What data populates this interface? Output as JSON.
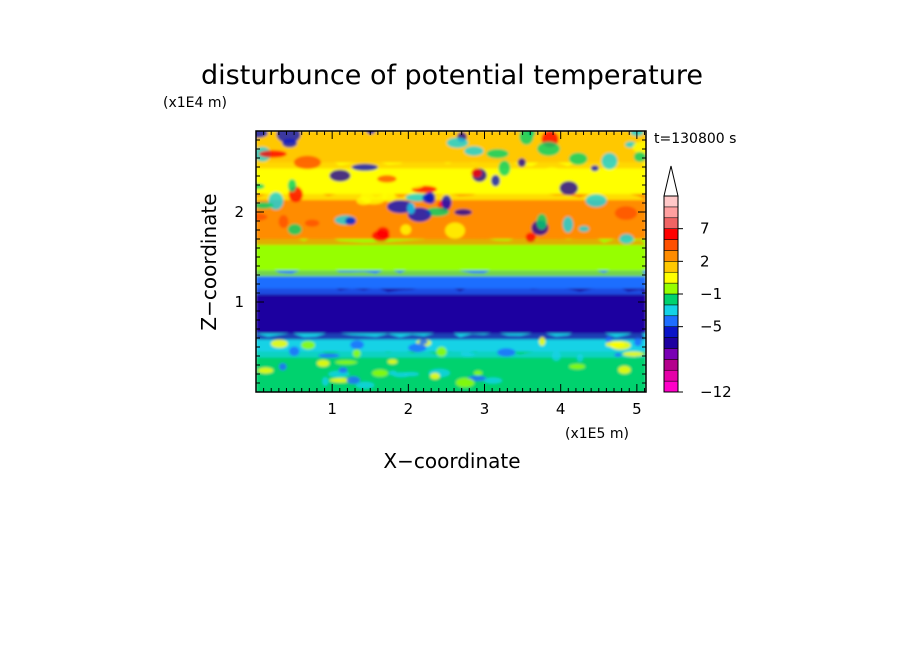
{
  "chart_data": {
    "type": "heatmap",
    "title": "disturbunce of potential temperature",
    "time_label": "t=130800 s",
    "xlabel": "X−coordinate",
    "ylabel": "Z−coordinate",
    "x_unit_label": "(x1E5 m)",
    "y_unit_label": "(x1E4 m)",
    "xlim": [
      0,
      5.12
    ],
    "ylim": [
      0,
      2.9
    ],
    "x_ticks": [
      1,
      2,
      3,
      4,
      5
    ],
    "x_tick_labels": [
      "1",
      "2",
      "3",
      "4",
      "5"
    ],
    "y_ticks": [
      1,
      2
    ],
    "y_tick_labels": [
      "1",
      "2"
    ],
    "colorbar": {
      "levels_low_to_high": [
        "#ff00c8",
        "#e600a8",
        "#b4008c",
        "#7a00b4",
        "#1e00a0",
        "#0a14c8",
        "#1e6eff",
        "#14d2e6",
        "#00d26e",
        "#96ff00",
        "#ffff00",
        "#ffc800",
        "#ff8c00",
        "#ff5000",
        "#ff0000",
        "#f06464",
        "#ffa0a0",
        "#ffc8c8"
      ],
      "tick_labels": [
        "−12",
        "−5",
        "−1",
        "2",
        "7"
      ],
      "tick_level_index": [
        0,
        6,
        9,
        12,
        15
      ],
      "extend": "max"
    },
    "field_rows_top_to_bottom": [
      {
        "z_top": 2.9,
        "z_bottom": 2.55,
        "description": "mixed orange/yellow/green with blue cells",
        "color": "#ffc800"
      },
      {
        "z_top": 2.55,
        "z_bottom": 2.2,
        "description": "yellow/orange with blue and green blobs",
        "color": "#ffff00"
      },
      {
        "z_top": 2.2,
        "z_bottom": 1.7,
        "description": "orange/yellow band",
        "color": "#ff8c00"
      },
      {
        "z_top": 1.7,
        "z_bottom": 1.35,
        "description": "yellow to green",
        "color": "#96ff00"
      },
      {
        "z_top": 1.35,
        "z_bottom": 1.15,
        "description": "cyan/light blue",
        "color": "#1e6eff"
      },
      {
        "z_top": 1.15,
        "z_bottom": 0.65,
        "description": "dark blue core",
        "color": "#1e00a0"
      },
      {
        "z_top": 0.65,
        "z_bottom": 0.45,
        "description": "cyan/green",
        "color": "#14d2e6"
      },
      {
        "z_top": 0.45,
        "z_bottom": 0.0,
        "description": "green with cyan/yellow speckles",
        "color": "#00d26e"
      }
    ]
  }
}
